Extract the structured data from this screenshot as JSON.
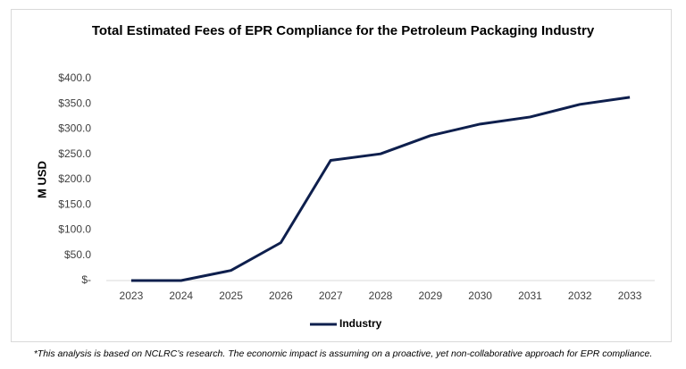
{
  "chart_data": {
    "type": "line",
    "title": "Total Estimated Fees of EPR Compliance for the Petroleum Packaging Industry",
    "y_label": "M USD",
    "categories": [
      "2023",
      "2024",
      "2025",
      "2026",
      "2027",
      "2028",
      "2029",
      "2030",
      "2031",
      "2032",
      "2033"
    ],
    "series": [
      {
        "name": "Industry",
        "color": "#0e1f4d",
        "values": [
          0,
          0,
          20,
          75,
          238,
          251,
          287,
          310,
          324,
          349,
          363
        ]
      }
    ],
    "ylim": [
      0,
      400
    ],
    "yticks": [
      {
        "value": 0,
        "label": "$-"
      },
      {
        "value": 50,
        "label": "$50.0"
      },
      {
        "value": 100,
        "label": "$100.0"
      },
      {
        "value": 150,
        "label": "$150.0"
      },
      {
        "value": 200,
        "label": "$200.0"
      },
      {
        "value": 250,
        "label": "$250.0"
      },
      {
        "value": 300,
        "label": "$300.0"
      },
      {
        "value": 350,
        "label": "$350.0"
      },
      {
        "value": 400,
        "label": "$400.0"
      }
    ],
    "grid": false,
    "legend": "bottom",
    "footnote": "*This analysis is based on NCLRC’s research. The economic impact is assuming on a proactive, yet non-collaborative approach for EPR compliance."
  }
}
